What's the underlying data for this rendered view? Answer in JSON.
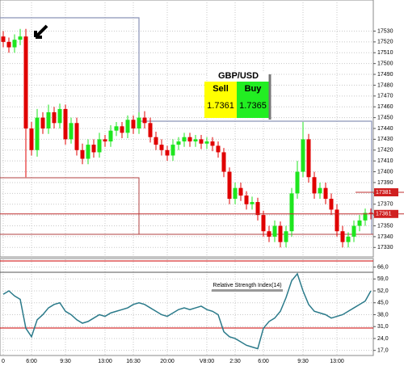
{
  "chart_data": [
    {
      "type": "candlestick",
      "categories": [
        "0",
        null,
        null,
        null,
        null,
        "6:00",
        null,
        null,
        null,
        null,
        null,
        "9:30",
        null,
        null,
        null,
        null,
        null,
        null,
        "13:00",
        null,
        null,
        null,
        null,
        "16:30",
        null,
        null,
        null,
        null,
        null,
        "20:00",
        null,
        null,
        null,
        null,
        null,
        null,
        "V8:00",
        null,
        null,
        null,
        null,
        "2:30",
        null,
        null,
        null,
        null,
        "6:00",
        null,
        null,
        null,
        null,
        null,
        null,
        "9:30",
        null,
        null,
        null,
        null,
        null,
        "13:00",
        null,
        null,
        null,
        null,
        null,
        null
      ],
      "open": [
        17525,
        17520,
        17515,
        17522,
        17525,
        17440,
        17420,
        17450,
        17440,
        17455,
        17445,
        17458,
        17430,
        17445,
        17420,
        17412,
        17425,
        17418,
        17430,
        17428,
        17438,
        17442,
        17436,
        17448,
        17440,
        17450,
        17445,
        17432,
        17425,
        17420,
        17415,
        17425,
        17428,
        17432,
        17428,
        17430,
        17426,
        17428,
        17424,
        17418,
        17400,
        17375,
        17385,
        17378,
        17370,
        17372,
        17360,
        17345,
        17340,
        17350,
        17335,
        17345,
        17380,
        17400,
        17430,
        17395,
        17380,
        17385,
        17375,
        17365,
        17345,
        17335,
        17340,
        17350,
        17355,
        17362
      ],
      "high": [
        17530,
        17524,
        17527,
        17532,
        17532,
        17446,
        17458,
        17455,
        17462,
        17460,
        17463,
        17462,
        17450,
        17450,
        17426,
        17430,
        17430,
        17436,
        17434,
        17443,
        17446,
        17446,
        17452,
        17452,
        17455,
        17456,
        17450,
        17437,
        17430,
        17424,
        17430,
        17432,
        17436,
        17436,
        17434,
        17434,
        17432,
        17432,
        17428,
        17422,
        17404,
        17390,
        17390,
        17382,
        17377,
        17376,
        17364,
        17350,
        17355,
        17354,
        17350,
        17385,
        17410,
        17446,
        17435,
        17400,
        17390,
        17390,
        17380,
        17370,
        17350,
        17344,
        17355,
        17360,
        17366,
        17366
      ],
      "low": [
        17515,
        17510,
        17510,
        17517,
        17395,
        17415,
        17414,
        17435,
        17435,
        17440,
        17440,
        17425,
        17426,
        17415,
        17407,
        17407,
        17413,
        17413,
        17423,
        17423,
        17433,
        17431,
        17431,
        17435,
        17435,
        17440,
        17427,
        17420,
        17415,
        17410,
        17410,
        17420,
        17423,
        17423,
        17423,
        17421,
        17421,
        17419,
        17413,
        17395,
        17370,
        17370,
        17373,
        17365,
        17365,
        17355,
        17340,
        17335,
        17335,
        17330,
        17330,
        17340,
        17375,
        17395,
        17390,
        17375,
        17375,
        17370,
        17360,
        17340,
        17330,
        17330,
        17335,
        17345,
        17350,
        17356
      ],
      "close": [
        17520,
        17515,
        17522,
        17525,
        17440,
        17420,
        17450,
        17440,
        17455,
        17445,
        17458,
        17430,
        17445,
        17420,
        17412,
        17425,
        17418,
        17430,
        17428,
        17438,
        17442,
        17436,
        17448,
        17440,
        17450,
        17445,
        17432,
        17425,
        17420,
        17415,
        17425,
        17428,
        17432,
        17428,
        17430,
        17426,
        17428,
        17424,
        17418,
        17400,
        17375,
        17385,
        17378,
        17370,
        17372,
        17360,
        17345,
        17340,
        17350,
        17335,
        17345,
        17380,
        17400,
        17430,
        17395,
        17380,
        17385,
        17375,
        17365,
        17345,
        17335,
        17340,
        17350,
        17355,
        17362,
        17361
      ],
      "up_color": "#1ee61e",
      "down_color": "#e00000",
      "ylim": [
        17325,
        17555
      ],
      "yticks": [
        17330,
        17340,
        17350,
        17360,
        17370,
        17380,
        17390,
        17400,
        17410,
        17420,
        17430,
        17440,
        17450,
        17460,
        17470,
        17480,
        17490,
        17500,
        17510,
        17520,
        17530
      ],
      "price_labels": [
        17381,
        17361
      ],
      "widget": {
        "pair": "GBP/USD",
        "sell_label": "Sell",
        "buy_label": "Buy",
        "sell": "1.7361",
        "buy": "1.7365"
      },
      "grid": true
    },
    {
      "type": "line",
      "title": "Relative Strength Index(14)",
      "color": "#2a7a8a",
      "values": [
        50,
        52,
        49,
        47,
        30,
        25,
        35,
        38,
        42,
        44,
        45,
        40,
        38,
        35,
        33,
        34,
        36,
        38,
        37,
        39,
        40,
        41,
        42,
        44,
        45,
        44,
        42,
        40,
        38,
        37,
        39,
        41,
        42,
        41,
        42,
        43,
        41,
        40,
        38,
        28,
        25,
        24,
        22,
        20,
        19,
        18,
        30,
        34,
        36,
        40,
        48,
        58,
        62,
        52,
        44,
        40,
        39,
        38,
        36,
        37,
        38,
        40,
        42,
        44,
        46,
        52
      ],
      "ylim": [
        14,
        71
      ],
      "yticks": [
        {
          "value": 17,
          "label": "17,0"
        },
        {
          "value": 24,
          "label": "24,0"
        },
        {
          "value": 31,
          "label": "31,0"
        },
        {
          "value": 38,
          "label": "38,0"
        },
        {
          "value": 45,
          "label": "45,0"
        },
        {
          "value": 52,
          "label": "52,0"
        },
        {
          "value": 59,
          "label": "59,0"
        },
        {
          "value": 66,
          "label": "66,0"
        }
      ],
      "grid": true
    }
  ]
}
